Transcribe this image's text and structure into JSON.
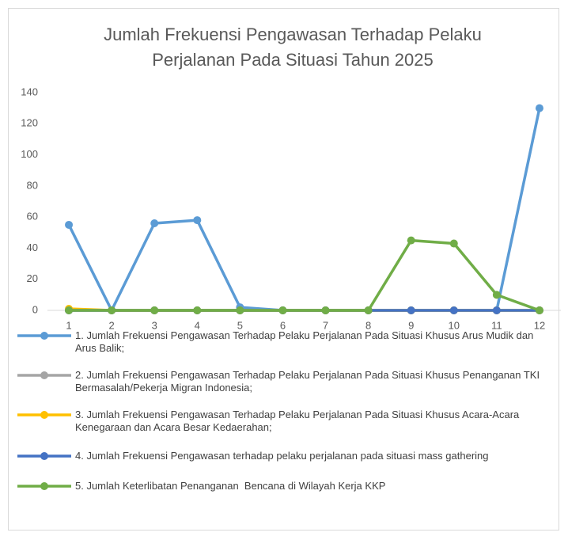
{
  "chart_data": {
    "type": "line",
    "title": [
      "Jumlah Frekuensi Pengawasan Terhadap Pelaku",
      "Perjalanan Pada Situasi Tahun 2025"
    ],
    "categories": [
      "1",
      "2",
      "3",
      "4",
      "5",
      "6",
      "7",
      "8",
      "9",
      "10",
      "11",
      "12"
    ],
    "series": [
      {
        "name": "1. Jumlah Frekuensi Pengawasan Terhadap Pelaku Perjalanan Pada Situasi Khusus Arus Mudik dan Arus Balik;",
        "color": "#5b9bd5",
        "values": [
          55,
          0,
          56,
          58,
          2,
          0,
          0,
          0,
          0,
          0,
          0,
          130
        ]
      },
      {
        "name": "2. Jumlah Frekuensi Pengawasan Terhadap Pelaku Perjalanan Pada Situasi Khusus Penanganan TKI Bermasalah/Pekerja Migran Indonesia;",
        "color": "#a5a5a5",
        "values": [
          0,
          0,
          0,
          0,
          0,
          0,
          0,
          0,
          0,
          0,
          0,
          0
        ]
      },
      {
        "name": "3. Jumlah Frekuensi Pengawasan Terhadap Pelaku Perjalanan Pada Situasi Khusus Acara-Acara Kenegaraan dan Acara Besar Kedaerahan;",
        "color": "#ffc000",
        "values": [
          1,
          0,
          0,
          0,
          0,
          0,
          0,
          0,
          0,
          0,
          0,
          0
        ]
      },
      {
        "name": "4. Jumlah Frekuensi Pengawasan terhadap pelaku perjalanan pada situasi mass gathering",
        "color": "#4472c4",
        "values": [
          0,
          0,
          0,
          0,
          0,
          0,
          0,
          0,
          0,
          0,
          0,
          0
        ]
      },
      {
        "name": "5. Jumlah Keterlibatan Penanganan  Bencana di Wilayah Kerja KKP",
        "color": "#70ad47",
        "values": [
          0,
          0,
          0,
          0,
          0,
          0,
          0,
          0,
          45,
          43,
          10,
          0
        ]
      }
    ],
    "ylim": [
      0,
      140
    ],
    "yticks": [
      0,
      20,
      40,
      60,
      80,
      100,
      120,
      140
    ],
    "grid": false,
    "legend": "bottom"
  }
}
